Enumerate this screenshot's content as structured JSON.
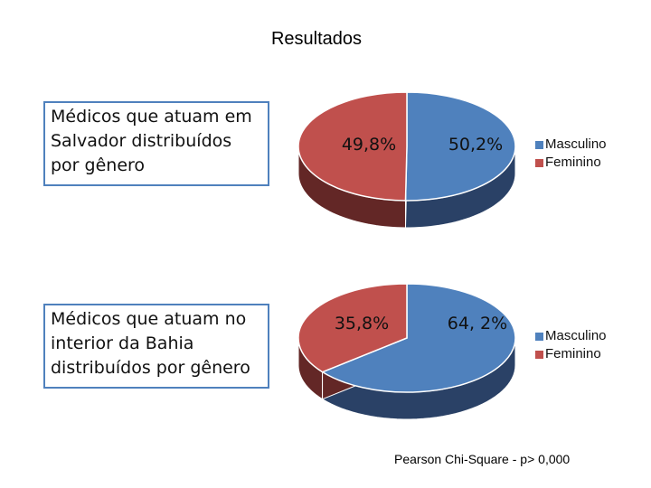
{
  "title": "Resultados",
  "colors": {
    "masculino_top": "#4f81bd",
    "masculino_side": "#2a4166",
    "feminino_top": "#c0504d",
    "feminino_side": "#632726",
    "box_border": "#4f81bd"
  },
  "chart_data": [
    {
      "type": "pie",
      "title": "Médicos  que atuam em Salvador distribuídos por gênero",
      "categories": [
        "Masculino",
        "Feminino"
      ],
      "values": [
        50.2,
        49.8
      ],
      "labels": [
        "50,2%",
        "49,8%"
      ],
      "legend": [
        "Masculino",
        "Feminino"
      ],
      "legend_position": "right"
    },
    {
      "type": "pie",
      "title": "Médicos  que atuam no interior da Bahia distribuídos por gênero",
      "categories": [
        "Masculino",
        "Feminino"
      ],
      "values": [
        64.2,
        35.8
      ],
      "labels": [
        "64, 2%",
        "35,8%"
      ],
      "legend": [
        "Masculino",
        "Feminino"
      ],
      "legend_position": "right"
    }
  ],
  "footnote": {
    "label": "Pearson Chi-Square -  p>",
    "value": "0,000"
  }
}
